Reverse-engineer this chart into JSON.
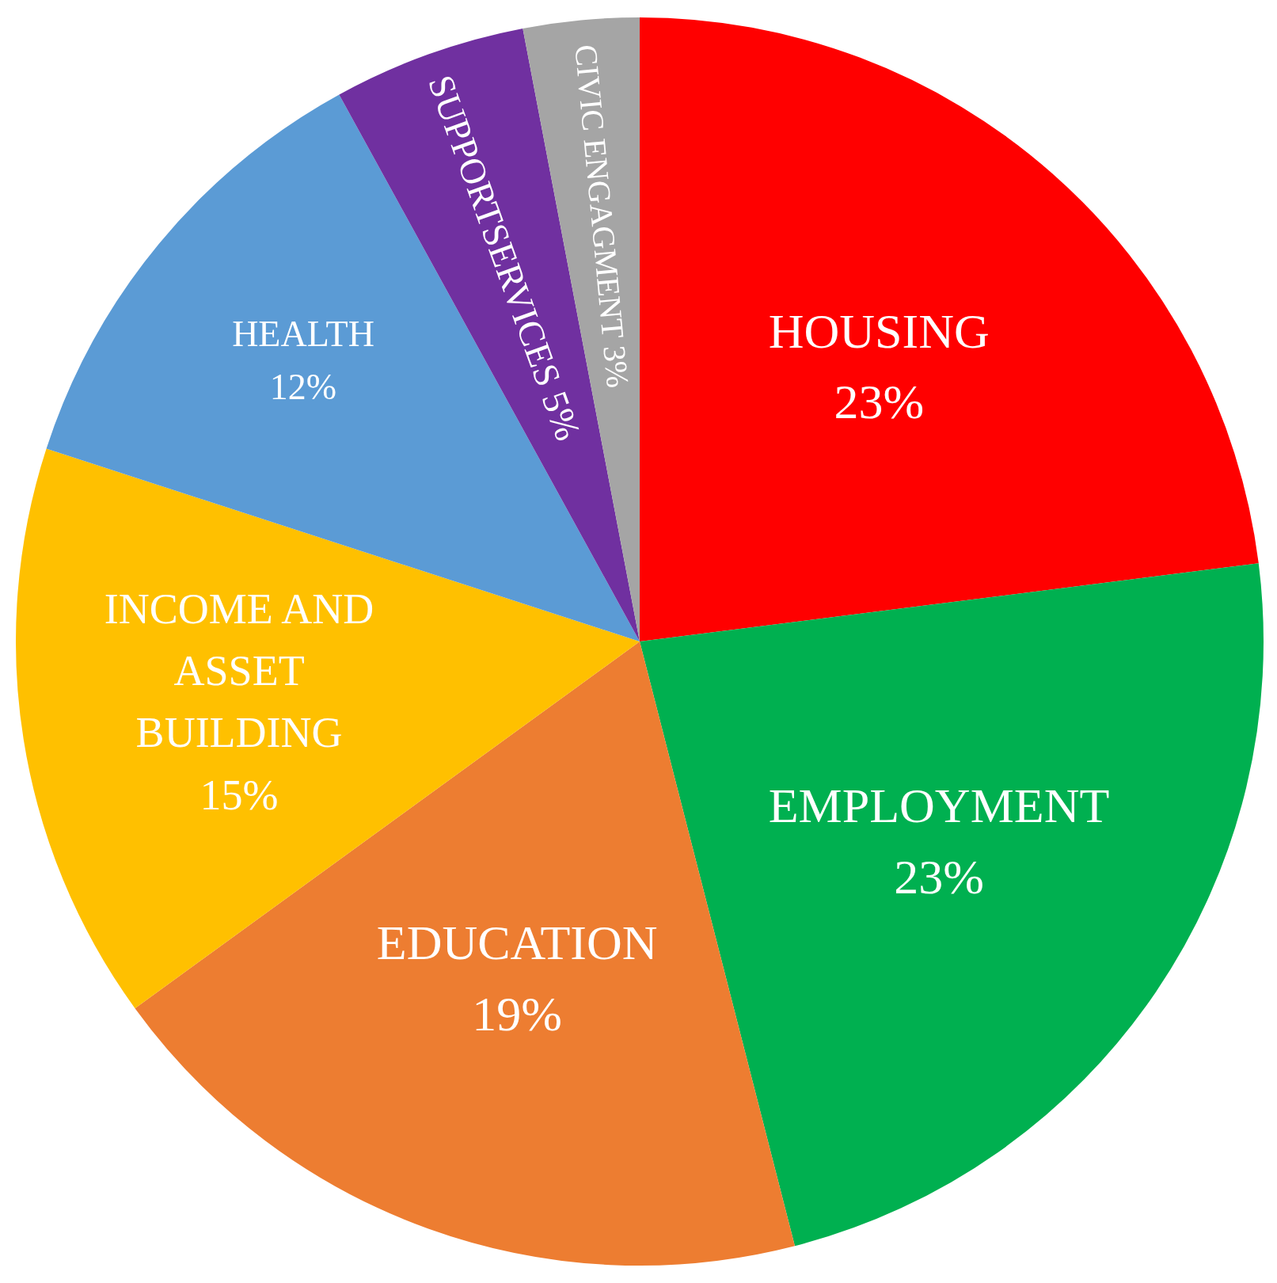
{
  "chart_data": {
    "type": "pie",
    "categories": [
      "HOUSING",
      "EMPLOYMENT",
      "EDUCATION",
      "INCOME AND ASSET BUILDING",
      "HEALTH",
      "SUPPORTSERVICES",
      "CIVIC ENGAGMENT"
    ],
    "values": [
      23,
      23,
      19,
      15,
      12,
      5,
      3
    ],
    "value_labels": [
      "23%",
      "23%",
      "19%",
      "15%",
      "12%",
      "5%",
      "3%"
    ],
    "colors": [
      "#ff0000",
      "#00b050",
      "#ed7d31",
      "#ffc000",
      "#5b9bd5",
      "#7030a0",
      "#a5a5a5"
    ],
    "legend": false
  }
}
